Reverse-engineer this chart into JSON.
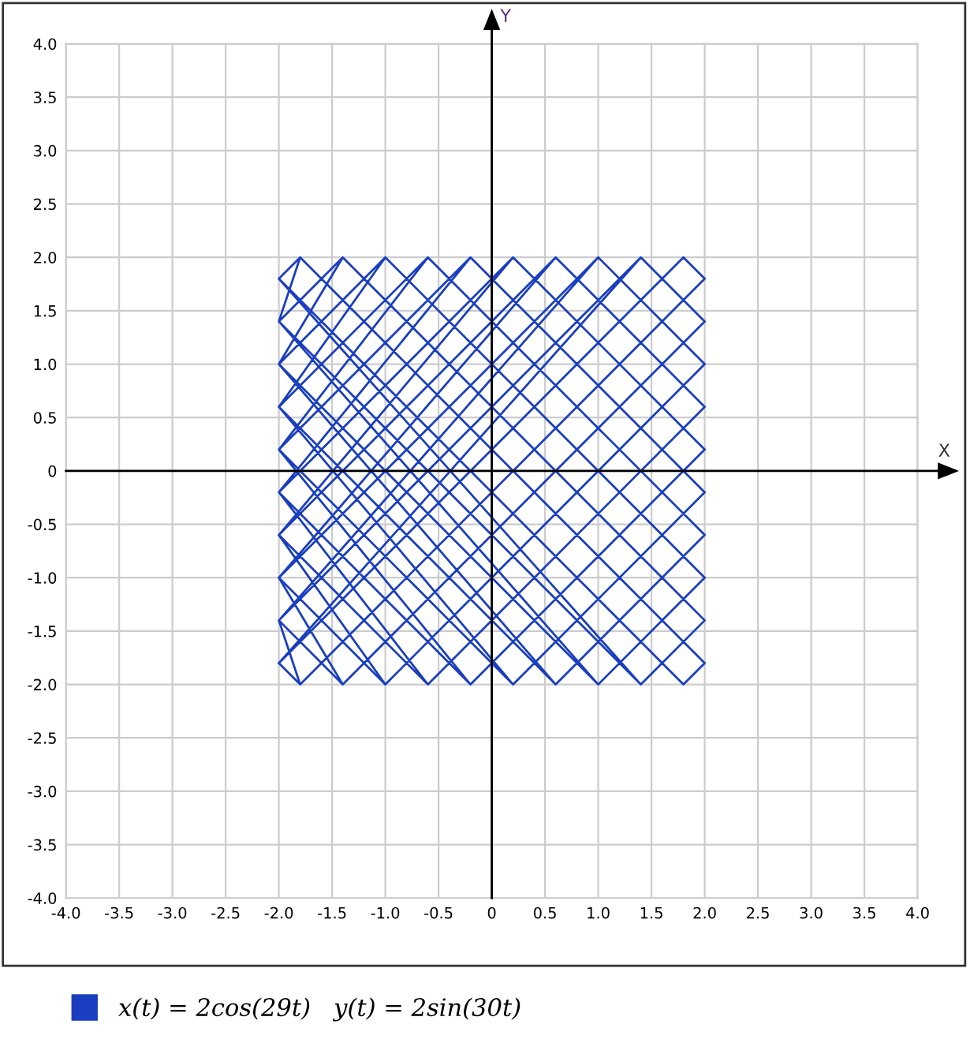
{
  "chart_data": {
    "type": "line",
    "xlabel": "X",
    "ylabel": "Y",
    "xlim": [
      -4,
      4
    ],
    "ylim": [
      -4,
      4
    ],
    "xticks": [
      {
        "value": -4,
        "label": "-4.0"
      },
      {
        "value": -3.5,
        "label": "-3.5"
      },
      {
        "value": -3,
        "label": "-3.0"
      },
      {
        "value": -2.5,
        "label": "-2.5"
      },
      {
        "value": -2,
        "label": "-2.0"
      },
      {
        "value": -1.5,
        "label": "-1.5"
      },
      {
        "value": -1,
        "label": "-1.0"
      },
      {
        "value": -0.5,
        "label": "-0.5"
      },
      {
        "value": 0,
        "label": "0"
      },
      {
        "value": 0.5,
        "label": "0.5"
      },
      {
        "value": 1,
        "label": "1.0"
      },
      {
        "value": 1.5,
        "label": "1.5"
      },
      {
        "value": 2,
        "label": "2.0"
      },
      {
        "value": 2.5,
        "label": "2.5"
      },
      {
        "value": 3,
        "label": "3.0"
      },
      {
        "value": 3.5,
        "label": "3.5"
      },
      {
        "value": 4,
        "label": "4.0"
      }
    ],
    "yticks": [
      {
        "value": -4,
        "label": "-4.0"
      },
      {
        "value": -3.5,
        "label": "-3.5"
      },
      {
        "value": -3,
        "label": "-3.0"
      },
      {
        "value": -2.5,
        "label": "-2.5"
      },
      {
        "value": -2,
        "label": "-2.0"
      },
      {
        "value": -1.5,
        "label": "-1.5"
      },
      {
        "value": -1,
        "label": "-1.0"
      },
      {
        "value": -0.5,
        "label": "-0.5"
      },
      {
        "value": 0,
        "label": "0"
      },
      {
        "value": 0.5,
        "label": "0.5"
      },
      {
        "value": 1,
        "label": "1.0"
      },
      {
        "value": 1.5,
        "label": "1.5"
      },
      {
        "value": 2,
        "label": "2.0"
      },
      {
        "value": 2.5,
        "label": "2.5"
      },
      {
        "value": 3,
        "label": "3.0"
      },
      {
        "value": 3.5,
        "label": "3.5"
      },
      {
        "value": 4,
        "label": "4.0"
      }
    ],
    "grid": true,
    "legend": "bottom",
    "marker": "none",
    "line_style": "solid",
    "series": [
      {
        "name": "x(t) = 2cos(29t)   y(t) = 2sin(30t)",
        "color": "#1a3ebf",
        "x": [
          -2,
          1.8,
          2,
          -1.8,
          -2,
          1.4,
          2,
          -1.4,
          -2,
          1.0,
          2,
          -1.0,
          -2,
          0.6,
          2,
          -0.6,
          -2,
          0.2,
          2,
          -0.2,
          -2,
          -0.2,
          2,
          0.2,
          -2,
          -0.6,
          2,
          0.6,
          -2,
          -1.0,
          2,
          1.0,
          -2,
          -1.4,
          2,
          1.4,
          -2,
          -1.8,
          2,
          1.8,
          -2,
          1.8,
          2,
          -1.8,
          -2,
          1.4,
          2,
          -1.4,
          -2,
          1.0,
          2,
          -1.0,
          -2,
          0.6,
          2,
          -0.6,
          -2,
          0.2,
          2,
          -0.2,
          -2,
          -0.2,
          2,
          0.2,
          -2,
          -0.6,
          2,
          0.6,
          -2,
          -1.0,
          2,
          1.0,
          -2,
          -1.4,
          2,
          1.4,
          -2,
          -1.8,
          2,
          1.8
        ],
        "values": [
          -1.8,
          2,
          1.8,
          -2,
          -1.4,
          2,
          1.4,
          -2,
          -1.0,
          2,
          1.0,
          -2,
          -0.6,
          2,
          0.6,
          -2,
          -0.2,
          2,
          0.2,
          -2,
          0.2,
          2,
          -0.2,
          -2,
          0.6,
          2,
          -0.6,
          -2,
          1.0,
          2,
          -1.0,
          -2,
          1.4,
          2,
          -1.4,
          -2,
          1.8,
          2,
          -1.8,
          -2,
          1.8,
          -2,
          -1.8,
          2,
          1.4,
          -2,
          -1.4,
          2,
          1.0,
          -2,
          -1.0,
          2,
          0.6,
          -2,
          -0.6,
          2,
          0.2,
          -2,
          -0.2,
          2,
          -0.2,
          -2,
          0.2,
          2,
          -0.6,
          -2,
          0.6,
          2,
          -1.0,
          -2,
          1.0,
          2,
          -1.4,
          -2,
          1.4,
          2,
          -1.8,
          -2,
          1.8,
          2
        ]
      }
    ]
  }
}
